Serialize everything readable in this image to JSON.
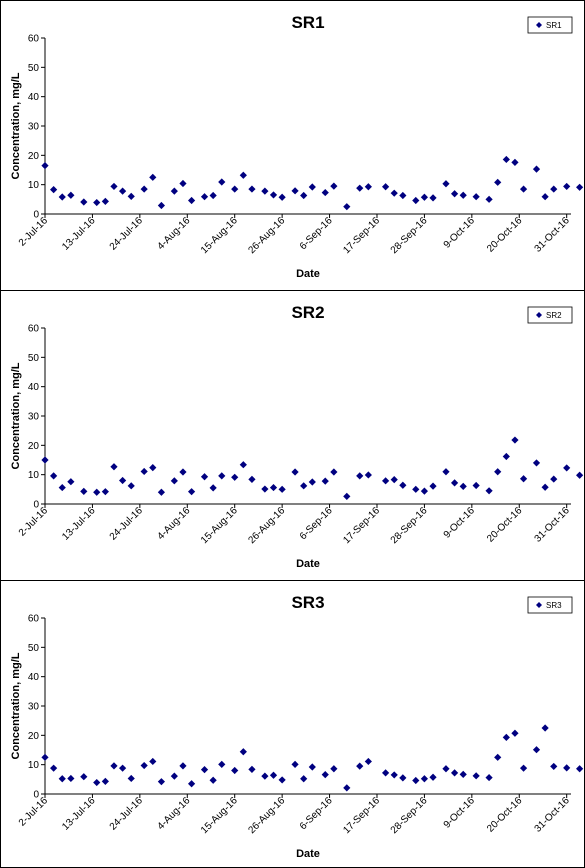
{
  "chart_data": [
    {
      "type": "scatter",
      "title": "SR1",
      "xlabel": "Date",
      "ylabel": "Concentration, mg/L",
      "ylim": [
        0,
        60
      ],
      "yticks": [
        "0",
        "10",
        "20",
        "30",
        "40",
        "50",
        "60"
      ],
      "xlim": [
        "2016-07-02",
        "2016-11-01"
      ],
      "xticks": [
        "2-Jul-16",
        "13-Jul-16",
        "24-Jul-16",
        "4-Aug-16",
        "15-Aug-16",
        "26-Aug-16",
        "6-Sep-16",
        "17-Sep-16",
        "28-Sep-16",
        "9-Oct-16",
        "20-Oct-16",
        "31-Oct-16"
      ],
      "grid": false,
      "legend": "top-right",
      "series": [
        {
          "name": "SR1",
          "marker": "diamond",
          "color": "#000080",
          "x": [
            "2016-07-02",
            "2016-07-04",
            "2016-07-06",
            "2016-07-08",
            "2016-07-11",
            "2016-07-14",
            "2016-07-16",
            "2016-07-18",
            "2016-07-20",
            "2016-07-22",
            "2016-07-25",
            "2016-07-27",
            "2016-07-29",
            "2016-08-01",
            "2016-08-03",
            "2016-08-05",
            "2016-08-08",
            "2016-08-10",
            "2016-08-12",
            "2016-08-15",
            "2016-08-17",
            "2016-08-19",
            "2016-08-22",
            "2016-08-24",
            "2016-08-26",
            "2016-08-29",
            "2016-08-31",
            "2016-09-02",
            "2016-09-05",
            "2016-09-07",
            "2016-09-10",
            "2016-09-13",
            "2016-09-15",
            "2016-09-19",
            "2016-09-21",
            "2016-09-23",
            "2016-09-26",
            "2016-09-28",
            "2016-09-30",
            "2016-10-03",
            "2016-10-05",
            "2016-10-07",
            "2016-10-10",
            "2016-10-13",
            "2016-10-15",
            "2016-10-17",
            "2016-10-19",
            "2016-10-21",
            "2016-10-24",
            "2016-10-26",
            "2016-10-28",
            "2016-10-31",
            "2016-11-03"
          ],
          "y": [
            16.5,
            8.3,
            5.8,
            6.4,
            4.1,
            3.9,
            4.3,
            9.4,
            7.8,
            6.0,
            8.5,
            12.5,
            2.9,
            7.8,
            10.4,
            4.6,
            5.9,
            6.3,
            10.9,
            8.5,
            13.2,
            8.5,
            7.8,
            6.5,
            5.7,
            7.9,
            6.3,
            9.2,
            7.3,
            9.5,
            2.5,
            8.8,
            9.3,
            9.3,
            7.1,
            6.3,
            4.6,
            5.7,
            5.5,
            10.3,
            6.9,
            6.4,
            5.9,
            5.0,
            10.8,
            18.6,
            17.6,
            8.5,
            15.3,
            5.9,
            8.5,
            9.4,
            9.1
          ]
        }
      ]
    },
    {
      "type": "scatter",
      "title": "SR2",
      "xlabel": "Date",
      "ylabel": "Concentration, mg/L",
      "ylim": [
        0,
        60
      ],
      "yticks": [
        "0",
        "10",
        "20",
        "30",
        "40",
        "50",
        "60"
      ],
      "xlim": [
        "2016-07-02",
        "2016-11-01"
      ],
      "xticks": [
        "2-Jul-16",
        "13-Jul-16",
        "24-Jul-16",
        "4-Aug-16",
        "15-Aug-16",
        "26-Aug-16",
        "6-Sep-16",
        "17-Sep-16",
        "28-Sep-16",
        "9-Oct-16",
        "20-Oct-16",
        "31-Oct-16"
      ],
      "grid": false,
      "legend": "top-right",
      "series": [
        {
          "name": "SR2",
          "marker": "diamond",
          "color": "#000080",
          "x": [
            "2016-07-02",
            "2016-07-04",
            "2016-07-06",
            "2016-07-08",
            "2016-07-11",
            "2016-07-14",
            "2016-07-16",
            "2016-07-18",
            "2016-07-20",
            "2016-07-22",
            "2016-07-25",
            "2016-07-27",
            "2016-07-29",
            "2016-08-01",
            "2016-08-03",
            "2016-08-05",
            "2016-08-08",
            "2016-08-10",
            "2016-08-12",
            "2016-08-15",
            "2016-08-17",
            "2016-08-19",
            "2016-08-22",
            "2016-08-24",
            "2016-08-26",
            "2016-08-29",
            "2016-08-31",
            "2016-09-02",
            "2016-09-05",
            "2016-09-07",
            "2016-09-10",
            "2016-09-13",
            "2016-09-15",
            "2016-09-19",
            "2016-09-21",
            "2016-09-23",
            "2016-09-26",
            "2016-09-28",
            "2016-09-30",
            "2016-10-03",
            "2016-10-05",
            "2016-10-07",
            "2016-10-10",
            "2016-10-13",
            "2016-10-15",
            "2016-10-17",
            "2016-10-19",
            "2016-10-21",
            "2016-10-24",
            "2016-10-26",
            "2016-10-28",
            "2016-10-31",
            "2016-11-03"
          ],
          "y": [
            15.0,
            9.6,
            5.6,
            7.6,
            4.3,
            4.0,
            4.2,
            12.7,
            8.0,
            6.2,
            11.1,
            12.4,
            4.0,
            7.9,
            10.9,
            4.2,
            9.3,
            5.5,
            9.6,
            9.1,
            13.4,
            8.4,
            5.1,
            5.6,
            5.0,
            10.9,
            6.2,
            7.5,
            7.8,
            10.9,
            2.6,
            9.6,
            9.9,
            7.9,
            8.3,
            6.4,
            5.0,
            4.4,
            6.1,
            11.0,
            7.2,
            6.0,
            6.3,
            4.5,
            11.0,
            16.2,
            21.8,
            8.6,
            14.0,
            5.7,
            8.5,
            12.3,
            9.8
          ]
        }
      ]
    },
    {
      "type": "scatter",
      "title": "SR3",
      "xlabel": "Date",
      "ylabel": "Concentration, mg/L",
      "ylim": [
        0,
        60
      ],
      "yticks": [
        "0",
        "10",
        "20",
        "30",
        "40",
        "50",
        "60"
      ],
      "xlim": [
        "2016-07-02",
        "2016-11-01"
      ],
      "xticks": [
        "2-Jul-16",
        "13-Jul-16",
        "24-Jul-16",
        "4-Aug-16",
        "15-Aug-16",
        "26-Aug-16",
        "6-Sep-16",
        "17-Sep-16",
        "28-Sep-16",
        "9-Oct-16",
        "20-Oct-16",
        "31-Oct-16"
      ],
      "grid": false,
      "legend": "top-right",
      "series": [
        {
          "name": "SR3",
          "marker": "diamond",
          "color": "#000080",
          "x": [
            "2016-07-02",
            "2016-07-04",
            "2016-07-06",
            "2016-07-08",
            "2016-07-11",
            "2016-07-14",
            "2016-07-16",
            "2016-07-18",
            "2016-07-20",
            "2016-07-22",
            "2016-07-25",
            "2016-07-27",
            "2016-07-29",
            "2016-08-01",
            "2016-08-03",
            "2016-08-05",
            "2016-08-08",
            "2016-08-10",
            "2016-08-12",
            "2016-08-15",
            "2016-08-17",
            "2016-08-19",
            "2016-08-22",
            "2016-08-24",
            "2016-08-26",
            "2016-08-29",
            "2016-08-31",
            "2016-09-02",
            "2016-09-05",
            "2016-09-07",
            "2016-09-10",
            "2016-09-13",
            "2016-09-15",
            "2016-09-19",
            "2016-09-21",
            "2016-09-23",
            "2016-09-26",
            "2016-09-28",
            "2016-09-30",
            "2016-10-03",
            "2016-10-05",
            "2016-10-07",
            "2016-10-10",
            "2016-10-13",
            "2016-10-15",
            "2016-10-17",
            "2016-10-19",
            "2016-10-21",
            "2016-10-24",
            "2016-10-26",
            "2016-10-28",
            "2016-10-31",
            "2016-11-03"
          ],
          "y": [
            12.5,
            8.8,
            5.2,
            5.3,
            5.9,
            3.9,
            4.3,
            9.6,
            8.8,
            5.3,
            9.7,
            11.1,
            4.2,
            6.1,
            9.6,
            3.5,
            8.3,
            4.7,
            10.1,
            8.0,
            14.4,
            8.4,
            6.1,
            6.4,
            4.8,
            10.1,
            5.2,
            9.2,
            6.6,
            8.6,
            2.1,
            9.5,
            11.1,
            7.2,
            6.5,
            5.5,
            4.6,
            5.2,
            5.7,
            8.6,
            7.2,
            6.7,
            6.2,
            5.6,
            12.5,
            19.3,
            20.7,
            8.8,
            15.1,
            22.5,
            9.4,
            8.9,
            8.6
          ]
        }
      ]
    }
  ]
}
